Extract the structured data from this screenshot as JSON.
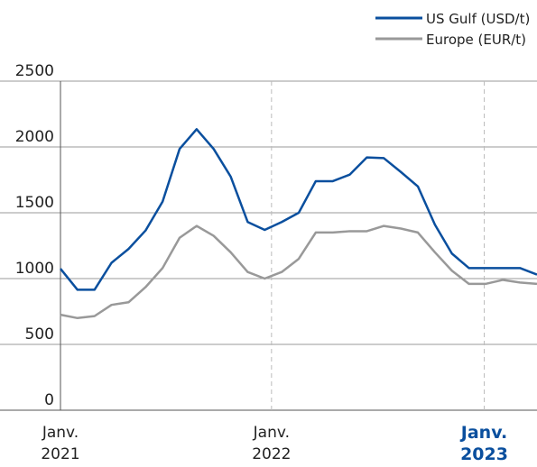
{
  "chart_data": {
    "type": "line",
    "x": [
      0,
      1,
      2,
      3,
      4,
      5,
      6,
      7,
      8,
      9,
      10,
      11,
      12,
      13,
      14,
      15,
      16,
      17,
      18,
      19,
      20,
      21,
      22,
      23,
      24,
      25,
      26,
      27,
      28
    ],
    "series": [
      {
        "name": "US Gulf (USD/t)",
        "color": "#0a4f9e",
        "values": [
          1075,
          915,
          915,
          1120,
          1225,
          1365,
          1585,
          1985,
          2135,
          1985,
          1775,
          1430,
          1370,
          1430,
          1500,
          1740,
          1740,
          1790,
          1920,
          1915,
          1810,
          1700,
          1410,
          1190,
          1080,
          1080,
          1080,
          1080,
          1030
        ]
      },
      {
        "name": "Europe (EUR/t)",
        "color": "#999999",
        "values": [
          725,
          700,
          715,
          800,
          820,
          935,
          1080,
          1310,
          1400,
          1325,
          1200,
          1050,
          1000,
          1050,
          1150,
          1350,
          1350,
          1360,
          1360,
          1400,
          1380,
          1350,
          1200,
          1060,
          960,
          960,
          990,
          970,
          960
        ]
      }
    ],
    "xlim": [
      0,
      28
    ],
    "xticks": [
      {
        "value": 0,
        "label": "Janv. 2021"
      },
      {
        "value": 12.4,
        "label": "Janv. 2022"
      },
      {
        "value": 24.9,
        "label": "Janv. 2023"
      }
    ],
    "ylim": [
      0,
      2500
    ],
    "yticks": [
      0,
      500,
      1000,
      1500,
      2000,
      2500
    ],
    "grid": true,
    "legend": "top-right"
  }
}
